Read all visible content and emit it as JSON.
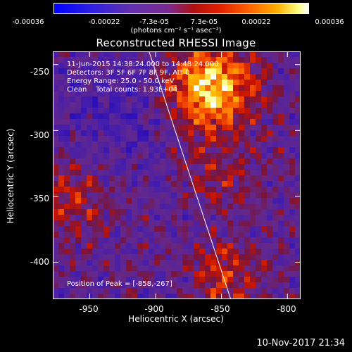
{
  "colorbar": {
    "ticks": [
      "-0.00036",
      "-0.00022",
      "-7.3e-05",
      "7.3e-05",
      "0.00022",
      "0.00036"
    ],
    "units": "(photons cm⁻² s⁻¹ asec⁻²)"
  },
  "chart_data": {
    "type": "heatmap",
    "title": "Reconstructed RHESSI Image",
    "xlabel": "Heliocentric X (arcsec)",
    "ylabel": "Heliocentric Y (arcsec)",
    "xlim": [
      -978,
      -790
    ],
    "ylim": [
      -428,
      -240
    ],
    "x_ticks": [
      "-950",
      "-900",
      "-850",
      "-800"
    ],
    "x_tick_values": [
      -950,
      -900,
      -850,
      -800
    ],
    "y_ticks": [
      "-250",
      "-300",
      "-350",
      "-400"
    ],
    "y_tick_values": [
      -250,
      -300,
      -350,
      -400
    ],
    "color_range": [
      -0.00036,
      0.00036
    ],
    "peak_xy": [
      -858,
      -267
    ],
    "limb_line": [
      [
        -905,
        -240
      ],
      [
        -843,
        -428
      ]
    ],
    "annotations": [
      "11-Jun-2015 14:38:24.000 to 14:48:24.000",
      "Detectors: 3F 5F 6F 7F 8F 9F, Att 0",
      "Energy Range: 25.0 - 50.0 keV",
      "Clean    Total counts: 1.93E+04"
    ],
    "peak_label": "Position of Peak = [-858,-267]"
  },
  "footer": {
    "timestamp": "10-Nov-2017 21:34"
  }
}
